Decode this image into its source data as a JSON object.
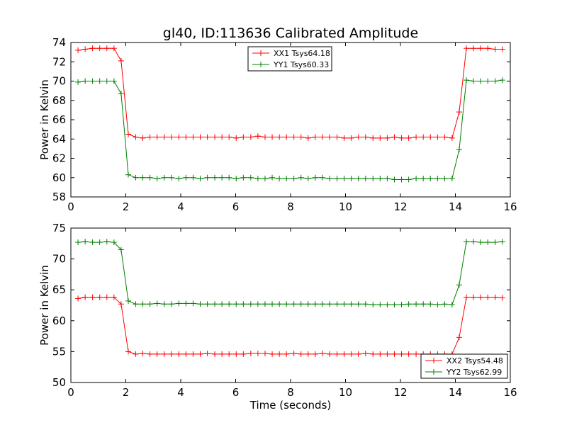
{
  "chart_data": [
    {
      "type": "line",
      "title": "gl40, ID:113636 Calibrated Amplitude",
      "xlabel": "",
      "ylabel": "Power in Kelvin",
      "xlim": [
        0,
        16
      ],
      "ylim": [
        58,
        74
      ],
      "xticks": [
        0,
        2,
        4,
        6,
        8,
        10,
        12,
        14,
        16
      ],
      "yticks": [
        58,
        60,
        62,
        64,
        66,
        68,
        70,
        72,
        74
      ],
      "grid": false,
      "legend_position": "top-center",
      "x": [
        0.26,
        0.52,
        0.79,
        1.05,
        1.31,
        1.57,
        1.83,
        2.09,
        2.36,
        2.62,
        2.88,
        3.14,
        3.4,
        3.66,
        3.93,
        4.19,
        4.45,
        4.71,
        4.97,
        5.24,
        5.5,
        5.76,
        6.02,
        6.28,
        6.55,
        6.81,
        7.07,
        7.33,
        7.59,
        7.85,
        8.12,
        8.38,
        8.64,
        8.9,
        9.16,
        9.42,
        9.69,
        9.95,
        10.21,
        10.47,
        10.73,
        11.0,
        11.26,
        11.52,
        11.78,
        12.04,
        12.3,
        12.57,
        12.83,
        13.09,
        13.35,
        13.61,
        13.88,
        14.14,
        14.4,
        14.66,
        14.92,
        15.18,
        15.45,
        15.71
      ],
      "series": [
        {
          "name": "XX1 Tsys64.18",
          "color": "#ff0000",
          "values": [
            73.2,
            73.3,
            73.4,
            73.4,
            73.4,
            73.4,
            72.1,
            64.5,
            64.2,
            64.1,
            64.2,
            64.2,
            64.2,
            64.2,
            64.2,
            64.2,
            64.2,
            64.2,
            64.2,
            64.2,
            64.2,
            64.2,
            64.1,
            64.2,
            64.2,
            64.3,
            64.2,
            64.2,
            64.2,
            64.2,
            64.2,
            64.2,
            64.1,
            64.2,
            64.2,
            64.2,
            64.2,
            64.1,
            64.1,
            64.2,
            64.2,
            64.1,
            64.1,
            64.1,
            64.2,
            64.1,
            64.1,
            64.2,
            64.2,
            64.2,
            64.2,
            64.2,
            64.1,
            66.8,
            73.4,
            73.4,
            73.4,
            73.4,
            73.3,
            73.3
          ]
        },
        {
          "name": "YY1 Tsys60.33",
          "color": "#008000",
          "values": [
            69.9,
            70.0,
            70.0,
            70.0,
            70.0,
            70.0,
            68.7,
            60.3,
            60.0,
            60.0,
            60.0,
            59.9,
            60.0,
            60.0,
            59.9,
            60.0,
            60.0,
            59.9,
            60.0,
            60.0,
            60.0,
            60.0,
            59.9,
            60.0,
            60.0,
            59.9,
            59.9,
            60.0,
            59.9,
            59.9,
            59.9,
            60.0,
            59.9,
            60.0,
            60.0,
            59.9,
            59.9,
            59.9,
            59.9,
            59.9,
            59.9,
            59.9,
            59.9,
            59.9,
            59.8,
            59.8,
            59.8,
            59.9,
            59.9,
            59.9,
            59.9,
            59.9,
            59.9,
            62.9,
            70.1,
            70.0,
            70.0,
            70.0,
            70.0,
            70.1
          ]
        }
      ]
    },
    {
      "type": "line",
      "title": "",
      "xlabel": "Time (seconds)",
      "ylabel": "Power in Kelvin",
      "xlim": [
        0,
        16
      ],
      "ylim": [
        50,
        75
      ],
      "xticks": [
        0,
        2,
        4,
        6,
        8,
        10,
        12,
        14,
        16
      ],
      "yticks": [
        50,
        55,
        60,
        65,
        70,
        75
      ],
      "grid": false,
      "legend_position": "lower-right",
      "x": [
        0.26,
        0.52,
        0.79,
        1.05,
        1.31,
        1.57,
        1.83,
        2.09,
        2.36,
        2.62,
        2.88,
        3.14,
        3.4,
        3.66,
        3.93,
        4.19,
        4.45,
        4.71,
        4.97,
        5.24,
        5.5,
        5.76,
        6.02,
        6.28,
        6.55,
        6.81,
        7.07,
        7.33,
        7.59,
        7.85,
        8.12,
        8.38,
        8.64,
        8.9,
        9.16,
        9.42,
        9.69,
        9.95,
        10.21,
        10.47,
        10.73,
        11.0,
        11.26,
        11.52,
        11.78,
        12.04,
        12.3,
        12.57,
        12.83,
        13.09,
        13.35,
        13.61,
        13.88,
        14.14,
        14.4,
        14.66,
        14.92,
        15.18,
        15.45,
        15.71
      ],
      "series": [
        {
          "name": "XX2 Tsys54.48",
          "color": "#ff0000",
          "values": [
            63.6,
            63.8,
            63.8,
            63.8,
            63.8,
            63.8,
            62.7,
            55.0,
            54.6,
            54.7,
            54.6,
            54.6,
            54.6,
            54.6,
            54.6,
            54.6,
            54.6,
            54.6,
            54.7,
            54.6,
            54.6,
            54.6,
            54.6,
            54.6,
            54.7,
            54.7,
            54.7,
            54.6,
            54.6,
            54.6,
            54.7,
            54.6,
            54.6,
            54.6,
            54.7,
            54.6,
            54.6,
            54.6,
            54.6,
            54.6,
            54.7,
            54.6,
            54.6,
            54.6,
            54.6,
            54.6,
            54.6,
            54.6,
            54.6,
            54.6,
            54.6,
            54.6,
            54.6,
            57.3,
            63.8,
            63.8,
            63.8,
            63.8,
            63.8,
            63.7
          ]
        },
        {
          "name": "YY2 Tsys62.99",
          "color": "#008000",
          "values": [
            72.7,
            72.8,
            72.7,
            72.7,
            72.8,
            72.7,
            71.5,
            63.2,
            62.7,
            62.7,
            62.7,
            62.8,
            62.7,
            62.7,
            62.8,
            62.8,
            62.8,
            62.7,
            62.7,
            62.7,
            62.7,
            62.7,
            62.7,
            62.7,
            62.7,
            62.7,
            62.7,
            62.7,
            62.7,
            62.7,
            62.7,
            62.7,
            62.7,
            62.7,
            62.7,
            62.7,
            62.7,
            62.7,
            62.7,
            62.7,
            62.7,
            62.6,
            62.6,
            62.6,
            62.6,
            62.6,
            62.7,
            62.7,
            62.7,
            62.7,
            62.6,
            62.7,
            62.6,
            65.8,
            72.8,
            72.8,
            72.7,
            72.7,
            72.7,
            72.8
          ]
        }
      ]
    }
  ]
}
